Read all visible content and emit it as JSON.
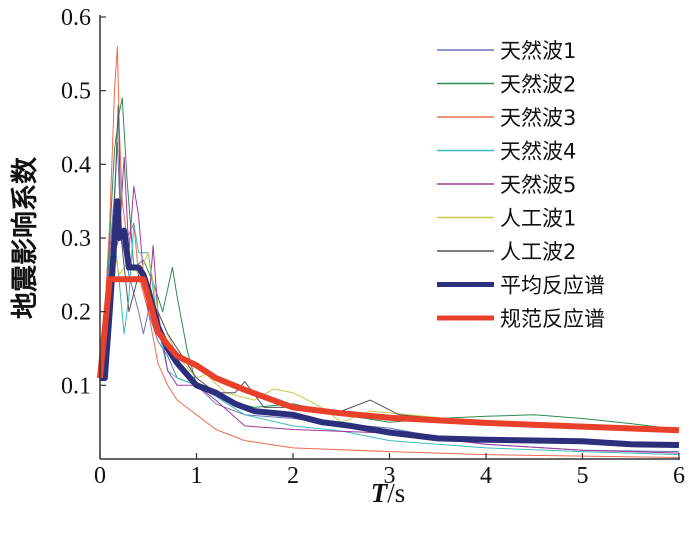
{
  "chart_data": {
    "type": "line",
    "title": "",
    "xlabel_italic": "T",
    "xlabel_unit": "/s",
    "ylabel": "地震影响系数",
    "xlim": [
      0,
      6
    ],
    "ylim": [
      0,
      0.6
    ],
    "xticks": [
      "0",
      "1",
      "2",
      "3",
      "4",
      "5",
      "6"
    ],
    "yticks": [
      "0.1",
      "0.2",
      "0.3",
      "0.4",
      "0.5",
      "0.6"
    ],
    "legend_placement": "top-right",
    "grid": false,
    "series": [
      {
        "name": "天然波1",
        "color": "#6a74b8",
        "width": 1,
        "x": [
          0,
          0.05,
          0.1,
          0.15,
          0.18,
          0.22,
          0.3,
          0.4,
          0.45,
          0.5,
          0.6,
          0.7,
          0.8,
          1.0,
          1.2,
          1.5,
          2,
          2.5,
          3,
          3.5,
          4,
          5,
          6
        ],
        "y": [
          0.11,
          0.15,
          0.28,
          0.36,
          0.43,
          0.3,
          0.25,
          0.2,
          0.17,
          0.2,
          0.16,
          0.14,
          0.11,
          0.1,
          0.075,
          0.06,
          0.055,
          0.048,
          0.042,
          0.03,
          0.02,
          0.012,
          0.01
        ]
      },
      {
        "name": "天然波2",
        "color": "#2e8b4f",
        "width": 1,
        "x": [
          0,
          0.05,
          0.1,
          0.15,
          0.2,
          0.23,
          0.28,
          0.35,
          0.45,
          0.55,
          0.65,
          0.75,
          0.8,
          0.9,
          1.0,
          1.3,
          1.6,
          2,
          2.5,
          3,
          3.5,
          4,
          4.5,
          5,
          5.5,
          6
        ],
        "y": [
          0.12,
          0.18,
          0.3,
          0.42,
          0.47,
          0.49,
          0.38,
          0.26,
          0.27,
          0.24,
          0.2,
          0.26,
          0.22,
          0.15,
          0.1,
          0.08,
          0.07,
          0.075,
          0.06,
          0.05,
          0.055,
          0.058,
          0.06,
          0.055,
          0.048,
          0.04
        ]
      },
      {
        "name": "天然波3",
        "color": "#ef6a4f",
        "width": 1,
        "x": [
          0,
          0.05,
          0.1,
          0.15,
          0.18,
          0.2,
          0.23,
          0.28,
          0.35,
          0.4,
          0.5,
          0.6,
          0.7,
          0.8,
          0.9,
          1.0,
          1.2,
          1.5,
          2,
          3,
          4,
          5,
          6
        ],
        "y": [
          0.15,
          0.2,
          0.32,
          0.5,
          0.56,
          0.45,
          0.35,
          0.3,
          0.32,
          0.25,
          0.2,
          0.13,
          0.1,
          0.08,
          0.07,
          0.06,
          0.04,
          0.025,
          0.015,
          0.01,
          0.006,
          0.004,
          0.002
        ]
      },
      {
        "name": "天然波4",
        "color": "#3bbcbc",
        "width": 1,
        "x": [
          0,
          0.05,
          0.1,
          0.15,
          0.2,
          0.25,
          0.3,
          0.35,
          0.4,
          0.5,
          0.6,
          0.7,
          0.8,
          1.0,
          1.2,
          1.5,
          2,
          2.5,
          3,
          4,
          5,
          6
        ],
        "y": [
          0.12,
          0.16,
          0.2,
          0.3,
          0.24,
          0.17,
          0.22,
          0.32,
          0.28,
          0.28,
          0.18,
          0.12,
          0.11,
          0.1,
          0.085,
          0.06,
          0.045,
          0.038,
          0.025,
          0.015,
          0.01,
          0.006
        ]
      },
      {
        "name": "天然波5",
        "color": "#a0389c",
        "width": 1,
        "x": [
          0,
          0.05,
          0.1,
          0.15,
          0.2,
          0.25,
          0.3,
          0.35,
          0.4,
          0.45,
          0.5,
          0.55,
          0.6,
          0.7,
          0.8,
          1.0,
          1.2,
          1.5,
          2,
          3,
          4,
          5,
          6
        ],
        "y": [
          0.11,
          0.15,
          0.22,
          0.28,
          0.3,
          0.41,
          0.28,
          0.37,
          0.33,
          0.25,
          0.2,
          0.29,
          0.2,
          0.12,
          0.1,
          0.1,
          0.08,
          0.045,
          0.04,
          0.035,
          0.02,
          0.012,
          0.008
        ]
      },
      {
        "name": "人工波1",
        "color": "#c8c84a",
        "width": 1,
        "x": [
          0,
          0.05,
          0.1,
          0.15,
          0.2,
          0.3,
          0.4,
          0.5,
          0.6,
          0.7,
          0.8,
          1.0,
          1.1,
          1.3,
          1.6,
          1.8,
          2.0,
          2.3,
          2.5,
          2.8,
          3.2,
          4,
          5,
          6
        ],
        "y": [
          0.12,
          0.16,
          0.22,
          0.28,
          0.25,
          0.27,
          0.25,
          0.28,
          0.2,
          0.17,
          0.14,
          0.11,
          0.115,
          0.09,
          0.08,
          0.095,
          0.09,
          0.07,
          0.05,
          0.065,
          0.06,
          0.05,
          0.045,
          0.04
        ]
      },
      {
        "name": "人工波2",
        "color": "#555555",
        "width": 1,
        "x": [
          0,
          0.05,
          0.1,
          0.15,
          0.19,
          0.22,
          0.3,
          0.4,
          0.5,
          0.6,
          0.7,
          0.8,
          1.0,
          1.2,
          1.4,
          1.5,
          1.7,
          2,
          2.5,
          2.8,
          3.1,
          3.5,
          4,
          5,
          5.5,
          6
        ],
        "y": [
          0.12,
          0.16,
          0.25,
          0.35,
          0.48,
          0.3,
          0.2,
          0.25,
          0.22,
          0.2,
          0.17,
          0.15,
          0.11,
          0.09,
          0.09,
          0.105,
          0.07,
          0.07,
          0.065,
          0.08,
          0.06,
          0.055,
          0.05,
          0.045,
          0.04,
          0.04
        ]
      },
      {
        "name": "平均反应谱",
        "color": "#2c2f7c",
        "width": 6,
        "x": [
          0,
          0.05,
          0.1,
          0.15,
          0.18,
          0.2,
          0.25,
          0.3,
          0.35,
          0.4,
          0.45,
          0.5,
          0.6,
          0.7,
          0.8,
          1.0,
          1.2,
          1.4,
          1.6,
          2,
          2.3,
          2.6,
          3,
          3.5,
          4,
          5,
          5.5,
          6
        ],
        "y": [
          0.11,
          0.11,
          0.2,
          0.3,
          0.35,
          0.3,
          0.31,
          0.26,
          0.26,
          0.26,
          0.25,
          0.23,
          0.18,
          0.15,
          0.13,
          0.1,
          0.09,
          0.075,
          0.065,
          0.06,
          0.05,
          0.045,
          0.036,
          0.028,
          0.026,
          0.024,
          0.02,
          0.019
        ]
      },
      {
        "name": "规范反应谱",
        "color": "#e8402a",
        "width": 6,
        "x": [
          0,
          0.1,
          0.45,
          0.5,
          0.6,
          0.7,
          0.8,
          1.0,
          1.2,
          1.5,
          2,
          2.5,
          3,
          4,
          5,
          6
        ],
        "y": [
          0.11,
          0.244,
          0.244,
          0.22,
          0.173,
          0.155,
          0.14,
          0.127,
          0.11,
          0.094,
          0.07,
          0.062,
          0.056,
          0.049,
          0.044,
          0.039
        ]
      }
    ]
  }
}
